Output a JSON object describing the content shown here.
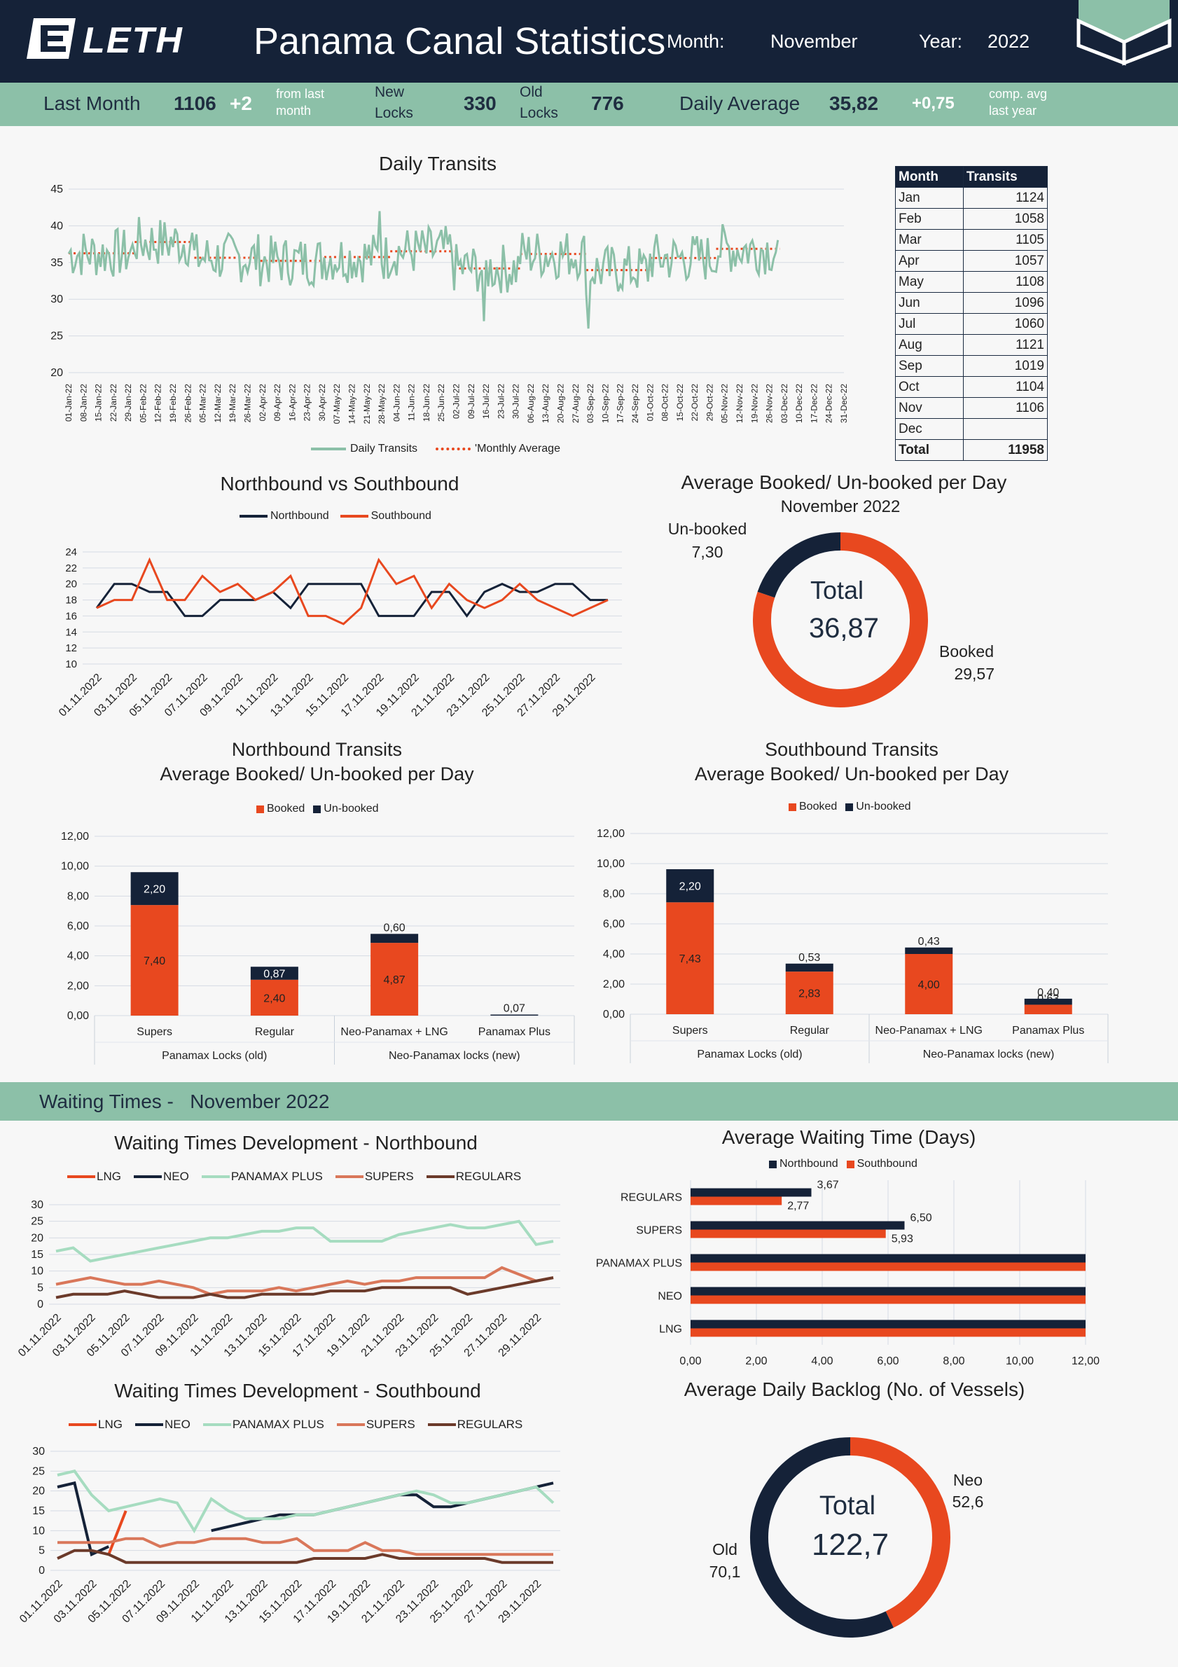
{
  "header": {
    "brand": "LETH",
    "title": "Panama Canal Statistics",
    "month_label": "Month:",
    "month_value": "November",
    "year_label": "Year:",
    "year_value": "2022"
  },
  "kpis": {
    "last_month_label": "Last Month",
    "last_month_value": "1106",
    "last_month_delta": "+2",
    "from_last_1": "from last",
    "from_last_2": "month",
    "new_locks_1": "New",
    "new_locks_2": "Locks",
    "new_locks_value": "330",
    "old_locks_1": "Old",
    "old_locks_2": "Locks",
    "old_locks_value": "776",
    "daily_avg_label": "Daily Average",
    "daily_avg_value": "35,82",
    "daily_avg_delta": "+0,75",
    "comp_1": "comp. avg",
    "comp_2": "last year"
  },
  "colors": {
    "navy": "#152238",
    "orange": "#e8481f",
    "green": "#8cc0a8",
    "salmon": "#d9775a",
    "brown": "#6b3a2a",
    "mint": "#a6dcc0"
  },
  "monthly_table": {
    "col_month": "Month",
    "col_transits": "Transits",
    "rows": [
      {
        "month": "Jan",
        "transits": "1124"
      },
      {
        "month": "Feb",
        "transits": "1058"
      },
      {
        "month": "Mar",
        "transits": "1105"
      },
      {
        "month": "Apr",
        "transits": "1057"
      },
      {
        "month": "May",
        "transits": "1108"
      },
      {
        "month": "Jun",
        "transits": "1096"
      },
      {
        "month": "Jul",
        "transits": "1060"
      },
      {
        "month": "Aug",
        "transits": "1121"
      },
      {
        "month": "Sep",
        "transits": "1019"
      },
      {
        "month": "Oct",
        "transits": "1104"
      },
      {
        "month": "Nov",
        "transits": "1106"
      },
      {
        "month": "Dec",
        "transits": ""
      }
    ],
    "total_label": "Total",
    "total_value": "11958"
  },
  "waiting_banner": {
    "label": "Waiting Times -   November 2022"
  },
  "chart_data": [
    {
      "id": "daily",
      "type": "line",
      "title": "Daily Transits",
      "ylim": [
        20,
        45
      ],
      "yticks": [
        20,
        25,
        30,
        35,
        40,
        45
      ],
      "x_ticks": [
        "01-Jan-22",
        "08-Jan-22",
        "15-Jan-22",
        "22-Jan-22",
        "29-Jan-22",
        "05-Feb-22",
        "12-Feb-22",
        "19-Feb-22",
        "26-Feb-22",
        "05-Mar-22",
        "12-Mar-22",
        "19-Mar-22",
        "26-Mar-22",
        "02-Apr-22",
        "09-Apr-22",
        "16-Apr-22",
        "23-Apr-22",
        "30-Apr-22",
        "07-May-22",
        "14-May-22",
        "21-May-22",
        "28-May-22",
        "04-Jun-22",
        "11-Jun-22",
        "18-Jun-22",
        "25-Jun-22",
        "02-Jul-22",
        "09-Jul-22",
        "16-Jul-22",
        "23-Jul-22",
        "30-Jul-22",
        "06-Aug-22",
        "13-Aug-22",
        "20-Aug-22",
        "27-Aug-22",
        "03-Sep-22",
        "10-Sep-22",
        "17-Sep-22",
        "24-Sep-22",
        "01-Oct-22",
        "08-Oct-22",
        "15-Oct-22",
        "22-Oct-22",
        "29-Oct-22",
        "05-Nov-22",
        "12-Nov-22",
        "19-Nov-22",
        "26-Nov-22",
        "03-Dec-22",
        "10-Dec-22",
        "17-Dec-22",
        "24-Dec-22",
        "31-Dec-22"
      ],
      "monthly_average": [
        36.26,
        37.79,
        35.65,
        35.23,
        35.74,
        36.53,
        34.19,
        36.16,
        33.97,
        35.61,
        36.87
      ],
      "series": [
        {
          "name": "Daily Transits",
          "color": "#8cc0a8"
        },
        {
          "name": "'Monthly Average",
          "color": "#e8481f"
        }
      ]
    },
    {
      "id": "nvs",
      "type": "line",
      "title": "Northbound vs Southbound",
      "ylim": [
        10,
        24
      ],
      "yticks": [
        10,
        12,
        14,
        16,
        18,
        20,
        22,
        24
      ],
      "categories": [
        "01.11.2022",
        "02.11.2022",
        "03.11.2022",
        "04.11.2022",
        "05.11.2022",
        "06.11.2022",
        "07.11.2022",
        "08.11.2022",
        "09.11.2022",
        "10.11.2022",
        "11.11.2022",
        "12.11.2022",
        "13.11.2022",
        "14.11.2022",
        "15.11.2022",
        "16.11.2022",
        "17.11.2022",
        "18.11.2022",
        "19.11.2022",
        "20.11.2022",
        "21.11.2022",
        "22.11.2022",
        "23.11.2022",
        "24.11.2022",
        "25.11.2022",
        "26.11.2022",
        "27.11.2022",
        "28.11.2022",
        "29.11.2022",
        "30.11.2022"
      ],
      "tick_labels": [
        "01.11.2022",
        "03.11.2022",
        "05.11.2022",
        "07.11.2022",
        "09.11.2022",
        "11.11.2022",
        "13.11.2022",
        "15.11.2022",
        "17.11.2022",
        "19.11.2022",
        "21.11.2022",
        "23.11.2022",
        "25.11.2022",
        "27.11.2022",
        "29.11.2022"
      ],
      "series": [
        {
          "name": "Northbound",
          "color": "#152238",
          "values": [
            17,
            20,
            20,
            19,
            19,
            16,
            16,
            18,
            18,
            18,
            19,
            17,
            20,
            20,
            20,
            20,
            16,
            16,
            16,
            19,
            19,
            16,
            19,
            20,
            19,
            19,
            20,
            20,
            18,
            18
          ]
        },
        {
          "name": "Southbound",
          "color": "#e8481f",
          "values": [
            17,
            18,
            18,
            23,
            18,
            18,
            21,
            19,
            20,
            18,
            19,
            21,
            16,
            16,
            15,
            17,
            23,
            20,
            21,
            17,
            20,
            18,
            17,
            18,
            20,
            18,
            17,
            16,
            17,
            18
          ]
        }
      ]
    },
    {
      "id": "donut1",
      "type": "pie",
      "title": "Average Booked/ Un-booked per Day",
      "subtitle": "November 2022",
      "center_label": "Total",
      "center_value": "36,87",
      "slices": [
        {
          "name": "Booked",
          "value": 29.57,
          "label": "29,57",
          "color": "#e8481f"
        },
        {
          "name": "Un-booked",
          "value": 7.3,
          "label": "7,30",
          "color": "#152238"
        }
      ]
    },
    {
      "id": "nbbar",
      "type": "bar",
      "title_1": "Northbound Transits",
      "title_2": "Average Booked/ Un-booked per Day",
      "ylim": [
        0,
        12
      ],
      "yticks": [
        "0,00",
        "2,00",
        "4,00",
        "6,00",
        "8,00",
        "10,00",
        "12,00"
      ],
      "categories": [
        "Supers",
        "Regular",
        "Neo-Panamax + LNG",
        "Panamax Plus"
      ],
      "groups": [
        "Panamax Locks (old)",
        "Neo-Panamax locks (new)"
      ],
      "series": [
        {
          "name": "Booked",
          "color": "#e8481f",
          "values": [
            7.4,
            2.4,
            4.87,
            0
          ],
          "labels": [
            "7,40",
            "2,40",
            "4,87",
            ""
          ]
        },
        {
          "name": "Un-booked",
          "color": "#152238",
          "values": [
            2.2,
            0.87,
            0.6,
            0.07
          ],
          "labels": [
            "2,20",
            "0,87",
            "0,60",
            "0,07"
          ]
        }
      ]
    },
    {
      "id": "sbbar",
      "type": "bar",
      "title_1": "Southbound Transits",
      "title_2": "Average Booked/ Un-booked per Day",
      "ylim": [
        0,
        12
      ],
      "yticks": [
        "0,00",
        "2,00",
        "4,00",
        "6,00",
        "8,00",
        "10,00",
        "12,00"
      ],
      "categories": [
        "Supers",
        "Regular",
        "Neo-Panamax + LNG",
        "Panamax Plus"
      ],
      "groups": [
        "Panamax Locks (old)",
        "Neo-Panamax locks (new)"
      ],
      "series": [
        {
          "name": "Booked",
          "color": "#e8481f",
          "values": [
            7.43,
            2.83,
            4.0,
            0.63
          ],
          "labels": [
            "7,43",
            "2,83",
            "4,00",
            "0,63"
          ]
        },
        {
          "name": "Un-booked",
          "color": "#152238",
          "values": [
            2.2,
            0.53,
            0.43,
            0.4
          ],
          "labels": [
            "2,20",
            "0,53",
            "0,43",
            "0,40"
          ]
        }
      ]
    },
    {
      "id": "wtn",
      "type": "line",
      "title": "Waiting Times Development - Northbound",
      "ylim": [
        0,
        30
      ],
      "yticks": [
        0,
        5,
        10,
        15,
        20,
        25,
        30
      ],
      "tick_labels": [
        "01.11.2022",
        "03.11.2022",
        "05.11.2022",
        "07.11.2022",
        "09.11.2022",
        "11.11.2022",
        "13.11.2022",
        "15.11.2022",
        "17.11.2022",
        "19.11.2022",
        "21.11.2022",
        "23.11.2022",
        "25.11.2022",
        "27.11.2022",
        "29.11.2022"
      ],
      "series": [
        {
          "name": "LNG",
          "color": "#e8481f",
          "values": [
            null,
            null,
            null,
            null,
            null,
            null,
            null,
            null,
            null,
            null,
            null,
            null,
            null,
            null,
            null,
            null,
            null,
            null,
            null,
            null,
            null,
            null,
            null,
            null,
            null,
            null,
            null,
            null,
            null,
            null
          ]
        },
        {
          "name": "NEO",
          "color": "#152238",
          "values": [
            null,
            null,
            null,
            null,
            null,
            null,
            null,
            null,
            null,
            null,
            null,
            null,
            null,
            null,
            null,
            null,
            null,
            null,
            null,
            null,
            null,
            null,
            null,
            null,
            null,
            null,
            null,
            null,
            null,
            null
          ]
        },
        {
          "name": "PANAMAX PLUS",
          "color": "#a6dcc0",
          "values": [
            16,
            17,
            13,
            14,
            15,
            16,
            17,
            18,
            19,
            20,
            20,
            21,
            22,
            22,
            23,
            23,
            19,
            19,
            19,
            19,
            21,
            22,
            23,
            24,
            23,
            23,
            24,
            25,
            18,
            19
          ]
        },
        {
          "name": "SUPERS",
          "color": "#d9775a",
          "values": [
            6,
            7,
            8,
            7,
            6,
            6,
            7,
            6,
            5,
            3,
            4,
            4,
            4,
            5,
            4,
            5,
            6,
            7,
            6,
            7,
            7,
            8,
            8,
            8,
            8,
            8,
            11,
            9,
            7,
            8
          ]
        },
        {
          "name": "REGULARS",
          "color": "#6b3a2a",
          "values": [
            2,
            3,
            3,
            3,
            4,
            3,
            2,
            2,
            2,
            3,
            2,
            2,
            3,
            3,
            3,
            3,
            4,
            4,
            4,
            5,
            5,
            5,
            5,
            5,
            3,
            4,
            5,
            6,
            7,
            8
          ]
        }
      ]
    },
    {
      "id": "avgwait",
      "type": "bar",
      "orientation": "horizontal",
      "title": "Average Waiting Time (Days)",
      "xlim": [
        0,
        12
      ],
      "xticks": [
        "0,00",
        "2,00",
        "4,00",
        "6,00",
        "8,00",
        "10,00",
        "12,00"
      ],
      "categories": [
        "REGULARS",
        "SUPERS",
        "PANAMAX PLUS",
        "NEO",
        "LNG"
      ],
      "series": [
        {
          "name": "Northbound",
          "color": "#152238",
          "values": [
            3.67,
            6.5,
            12,
            12,
            12
          ],
          "labels": [
            "3,67",
            "6,50",
            "",
            "",
            ""
          ]
        },
        {
          "name": "Southbound",
          "color": "#e8481f",
          "values": [
            2.77,
            5.93,
            12,
            12,
            12
          ],
          "labels": [
            "2,77",
            "5,93",
            "",
            "",
            ""
          ]
        }
      ]
    },
    {
      "id": "wts",
      "type": "line",
      "title": "Waiting Times Development - Southbound",
      "ylim": [
        0,
        30
      ],
      "yticks": [
        0,
        5,
        10,
        15,
        20,
        25,
        30
      ],
      "tick_labels": [
        "01.11.2022",
        "03.11.2022",
        "05.11.2022",
        "07.11.2022",
        "09.11.2022",
        "11.11.2022",
        "13.11.2022",
        "15.11.2022",
        "17.11.2022",
        "19.11.2022",
        "21.11.2022",
        "23.11.2022",
        "25.11.2022",
        "27.11.2022",
        "29.11.2022"
      ],
      "series": [
        {
          "name": "LNG",
          "color": "#e8481f",
          "values": [
            null,
            null,
            null,
            4,
            15,
            null,
            null,
            null,
            null,
            null,
            null,
            null,
            null,
            null,
            null,
            null,
            null,
            null,
            null,
            null,
            null,
            null,
            null,
            null,
            null,
            null,
            null,
            null,
            null,
            null
          ]
        },
        {
          "name": "NEO",
          "color": "#152238",
          "values": [
            21,
            22,
            4,
            6,
            null,
            null,
            null,
            null,
            null,
            10,
            11,
            12,
            13,
            14,
            14,
            14,
            15,
            16,
            17,
            18,
            19,
            19,
            16,
            16,
            17,
            18,
            19,
            20,
            21,
            22
          ]
        },
        {
          "name": "PANAMAX PLUS",
          "color": "#a6dcc0",
          "values": [
            24,
            25,
            19,
            15,
            16,
            17,
            18,
            17,
            10,
            18,
            15,
            13,
            13,
            13,
            14,
            14,
            15,
            16,
            17,
            18,
            19,
            20,
            19,
            17,
            17,
            18,
            19,
            20,
            21,
            17
          ]
        },
        {
          "name": "SUPERS",
          "color": "#d9775a",
          "values": [
            7,
            7,
            7,
            7,
            8,
            8,
            6,
            7,
            7,
            8,
            8,
            8,
            7,
            7,
            8,
            5,
            5,
            5,
            7,
            5,
            5,
            4,
            4,
            4,
            4,
            4,
            4,
            4,
            4,
            4
          ]
        },
        {
          "name": "REGULARS",
          "color": "#6b3a2a",
          "values": [
            3,
            5,
            5,
            4,
            2,
            2,
            2,
            2,
            2,
            2,
            2,
            2,
            2,
            2,
            2,
            3,
            3,
            3,
            3,
            4,
            3,
            3,
            3,
            3,
            3,
            3,
            2,
            2,
            2,
            2
          ]
        }
      ]
    },
    {
      "id": "donut2",
      "type": "pie",
      "title": "Average Daily Backlog (No. of Vessels)",
      "center_label": "Total",
      "center_value": "122,7",
      "slices": [
        {
          "name": "Neo",
          "value": 52.6,
          "label": "52,6",
          "color": "#e8481f"
        },
        {
          "name": "Old",
          "value": 70.1,
          "label": "70,1",
          "color": "#152238"
        }
      ]
    }
  ]
}
